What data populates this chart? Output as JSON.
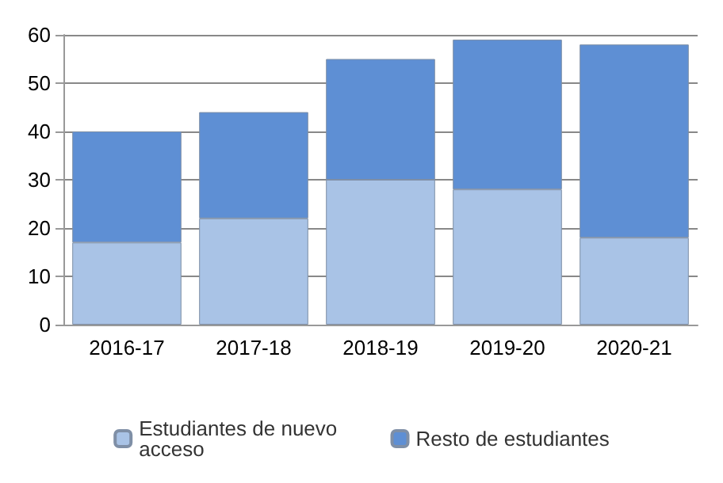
{
  "chart_data": {
    "type": "bar",
    "stacked": true,
    "categories": [
      "2016-17",
      "2017-18",
      "2018-19",
      "2019-20",
      "2020-21"
    ],
    "series": [
      {
        "name": "Estudiantes de nuevo acceso",
        "color": "#a9c3e6",
        "values": [
          17,
          22,
          30,
          28,
          18
        ]
      },
      {
        "name": "Resto de estudiantes",
        "color": "#5e8fd4",
        "values": [
          23,
          22,
          25,
          31,
          40
        ]
      }
    ],
    "ylim": [
      0,
      60
    ],
    "yticks": [
      0,
      10,
      20,
      30,
      40,
      50,
      60
    ],
    "grid": "y",
    "legend": "bottom"
  }
}
